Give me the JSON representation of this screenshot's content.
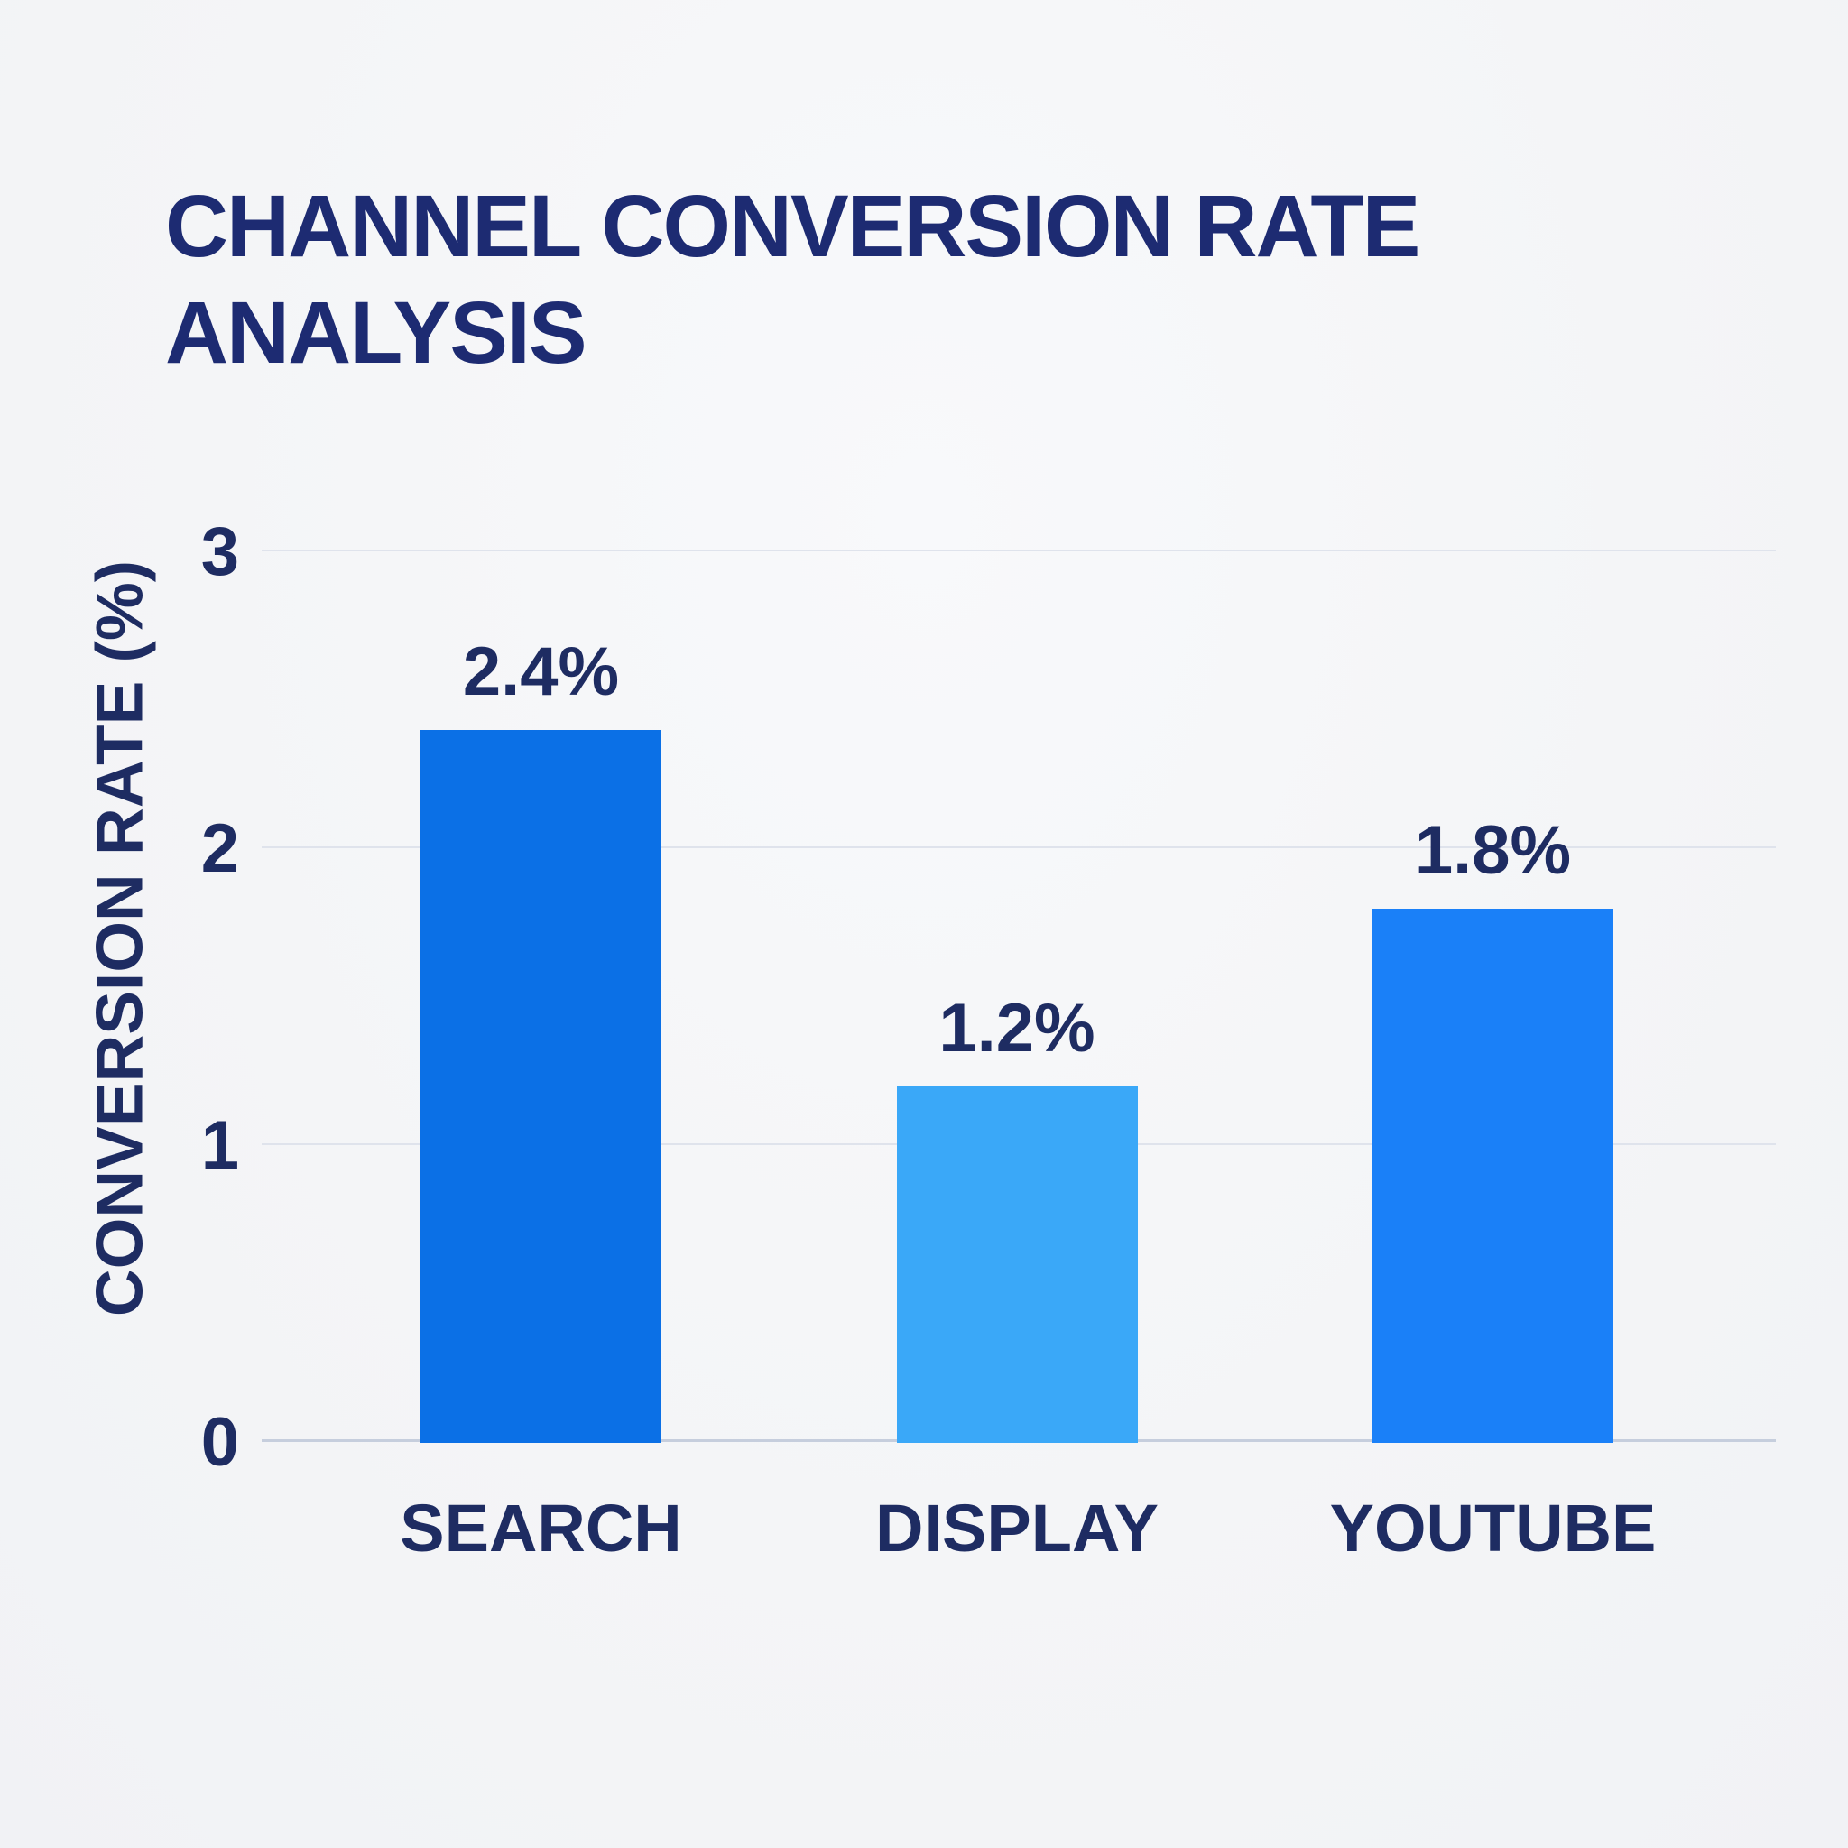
{
  "title": "CHANNEL CONVERSION RATE ANALYSIS",
  "colors": {
    "background": "#f4f5f7",
    "title_text": "#1d2b72",
    "label_text": "#1e2c62",
    "gridline": "#dfe3ec",
    "axis_line": "#c6cedd",
    "bar_search": "#0b70e6",
    "bar_display": "#3aa8f8",
    "bar_youtube": "#1a80f8"
  },
  "chart_data": {
    "type": "bar",
    "title": "CHANNEL CONVERSION RATE ANALYSIS",
    "categories": [
      "SEARCH",
      "DISPLAY",
      "YOUTUBE"
    ],
    "values": [
      2.4,
      1.2,
      1.8
    ],
    "value_labels": [
      "2.4%",
      "1.2%",
      "1.8%"
    ],
    "bar_colors": [
      "#0b70e6",
      "#3aa8f8",
      "#1a80f8"
    ],
    "xlabel": "",
    "ylabel": "CONVERSION RATE (%)",
    "yticks": [
      0,
      1,
      2,
      3
    ],
    "ytick_labels": [
      "0",
      "1",
      "2",
      "3"
    ],
    "ylim": [
      0,
      3
    ],
    "grid": true,
    "legend": false
  }
}
